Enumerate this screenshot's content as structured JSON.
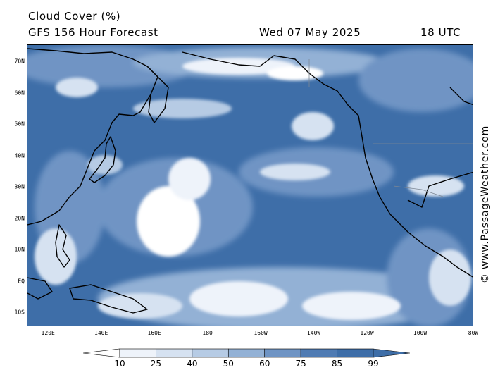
{
  "title": "Cloud Cover (%)",
  "subtitle": "GFS 156 Hour Forecast",
  "date": "Wed 07 May 2025",
  "time": "18 UTC",
  "watermark": "© www.PassageWeather.com",
  "latitudes": [
    {
      "label": "70N",
      "value": 70
    },
    {
      "label": "60N",
      "value": 60
    },
    {
      "label": "50N",
      "value": 50
    },
    {
      "label": "40N",
      "value": 40
    },
    {
      "label": "30N",
      "value": 30
    },
    {
      "label": "20N",
      "value": 20
    },
    {
      "label": "10N",
      "value": 10
    },
    {
      "label": "EQ",
      "value": 0
    },
    {
      "label": "10S",
      "value": -10
    }
  ],
  "longitudes": [
    {
      "label": "120E",
      "value": 120
    },
    {
      "label": "140E",
      "value": 140
    },
    {
      "label": "160E",
      "value": 160
    },
    {
      "label": "180",
      "value": 180
    },
    {
      "label": "160W",
      "value": 200
    },
    {
      "label": "140W",
      "value": 220
    },
    {
      "label": "120W",
      "value": 240
    },
    {
      "label": "100W",
      "value": 260
    },
    {
      "label": "80W",
      "value": 280
    }
  ],
  "legend": {
    "levels": [
      "10",
      "25",
      "40",
      "50",
      "60",
      "75",
      "85",
      "99"
    ],
    "colors": [
      "#ffffff",
      "#eef3fa",
      "#d6e2f1",
      "#b6cbe4",
      "#93b1d5",
      "#6f94c4",
      "#4f7bb3",
      "#3e6ea8"
    ]
  }
}
